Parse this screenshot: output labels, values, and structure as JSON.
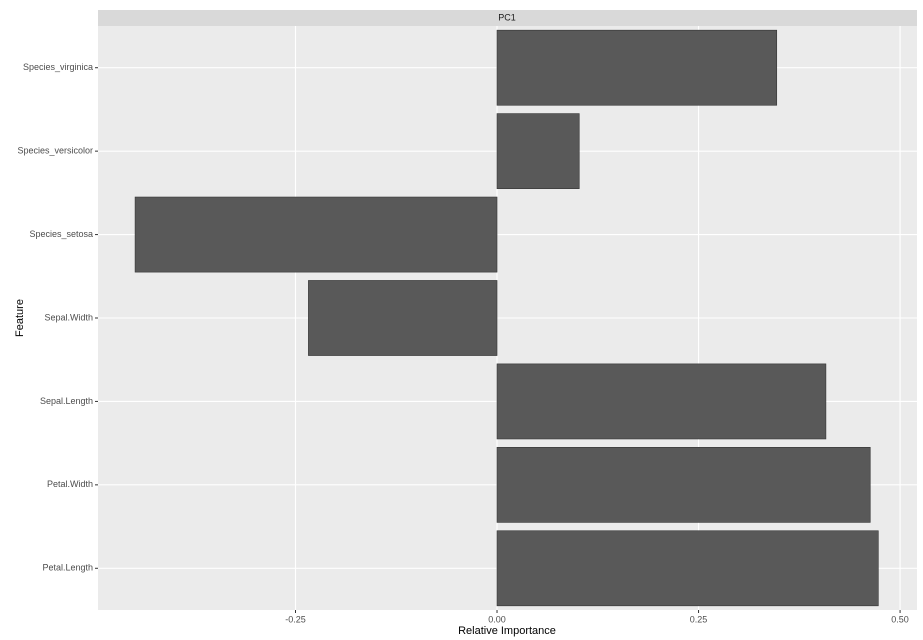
{
  "chart_data": {
    "type": "barh",
    "strip_title": "PC1",
    "xlabel": "Relative Importance",
    "ylabel": "Feature",
    "categories": [
      "Species_virginica",
      "Species_versicolor",
      "Species_setosa",
      "Sepal.Width",
      "Sepal.Length",
      "Petal.Width",
      "Petal.Length"
    ],
    "values": [
      0.347,
      0.102,
      -0.449,
      -0.234,
      0.408,
      0.463,
      0.473
    ],
    "color": "#595959",
    "xlim": [
      -0.495,
      0.521
    ],
    "xticks": [
      -0.25,
      {
        "value": 0,
        "label": "0.00"
      },
      0.25,
      {
        "value": 0.5,
        "label": "0.50"
      }
    ],
    "grid": true
  }
}
